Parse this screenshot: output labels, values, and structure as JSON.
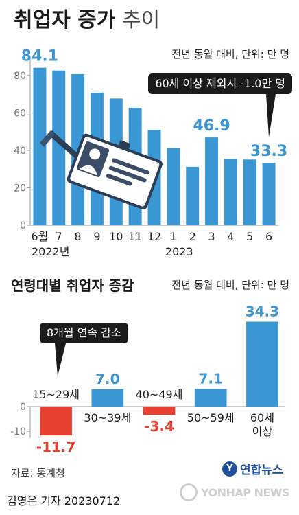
{
  "title": {
    "bold": "취업자 증가",
    "light": "추이"
  },
  "chart1_note": "전년 동월 대비, 단위: 만 명",
  "chart1_callout": "60세 이상 제외시 -1.0만 명",
  "chart2_title": "연령대별 취업자 증감",
  "chart2_note": "전년 동월 대비, 단위: 만 명",
  "chart2_callout": "8개월 연속 감소",
  "footer": {
    "source": "자료: 통계청",
    "reporter": "김영은 기자  20230712",
    "logo_text": "연합뉴스",
    "watermark": "YONHAP NEWS"
  },
  "colors": {
    "blue": "#3a97d4",
    "red": "#e64031",
    "axis": "#999999",
    "grid": "#dddddd"
  },
  "chart_data": [
    {
      "type": "bar",
      "categories": [
        "6월",
        "7",
        "8",
        "9",
        "10",
        "11",
        "12",
        "1",
        "2",
        "3",
        "4",
        "5",
        "6"
      ],
      "year_labels": [
        "2022년",
        "2023"
      ],
      "values": [
        84.1,
        82.6,
        80.7,
        70.7,
        67.7,
        62.6,
        50.9,
        41.1,
        31.2,
        46.9,
        35.4,
        35.1,
        33.3
      ],
      "labeled_values": [
        "84.1",
        "46.9",
        "33.3"
      ],
      "yticks": [
        "0",
        "20",
        "40",
        "60",
        "80"
      ],
      "ylim": [
        0,
        88
      ],
      "grid": false
    },
    {
      "type": "bar",
      "categories": [
        "15~29세",
        "30~39세",
        "40~49세",
        "50~59세",
        "60세|이상"
      ],
      "values": [
        -11.7,
        7.0,
        -3.4,
        7.1,
        34.3
      ],
      "value_labels": [
        "-11.7",
        "7.0",
        "-3.4",
        "7.1",
        "34.3"
      ],
      "yticks": [
        "0",
        "-10"
      ],
      "ylim": [
        -13,
        36
      ],
      "grid": false
    }
  ]
}
